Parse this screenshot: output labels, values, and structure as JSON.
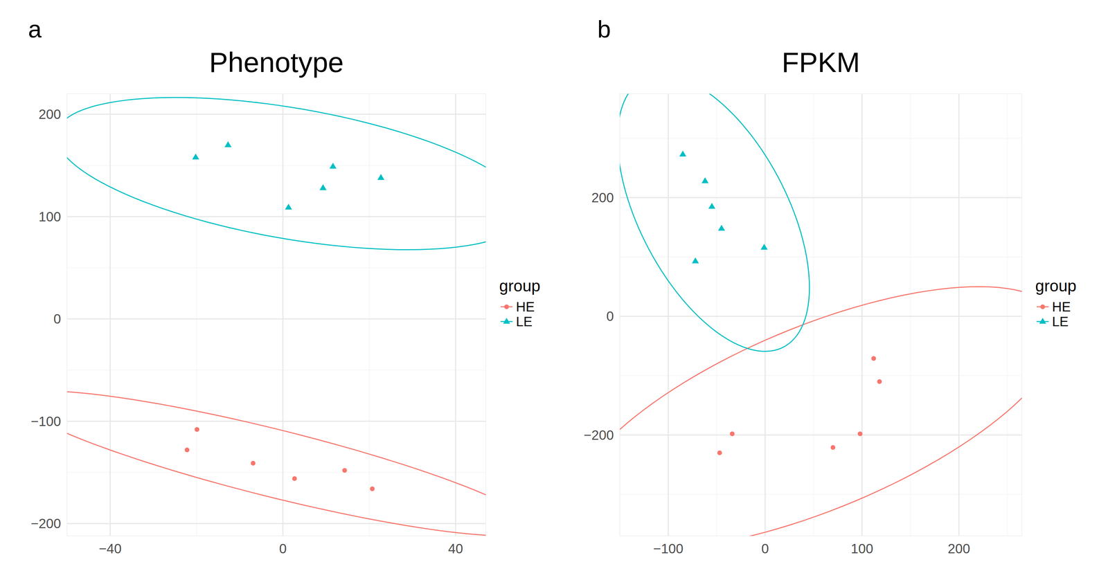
{
  "chart_data": [
    {
      "type": "scatter",
      "title": "Phenotype",
      "annotations": [
        "a"
      ],
      "legend_title": "group",
      "legend": "right",
      "grid": true,
      "xlim": [
        -50,
        47
      ],
      "xticks": [
        -40,
        0,
        40
      ],
      "ylim": [
        -212,
        220
      ],
      "yticks": [
        -200,
        -100,
        0,
        100,
        200
      ],
      "series": [
        {
          "name": "HE",
          "color": "#F8766D",
          "marker": "circle",
          "x": [
            -19.9,
            -22.2,
            -6.9,
            2.7,
            14.3,
            20.7
          ],
          "values": [
            -108,
            -128,
            -141,
            -156,
            -148,
            -166
          ]
        },
        {
          "name": "LE",
          "color": "#00BFC4",
          "marker": "triangle",
          "x": [
            -20.2,
            -12.7,
            1.3,
            9.3,
            11.6,
            22.7
          ],
          "values": [
            158,
            170,
            109,
            128,
            149,
            138
          ]
        }
      ]
    },
    {
      "type": "scatter",
      "title": "FPKM",
      "annotations": [
        "b"
      ],
      "legend_title": "group",
      "legend": "right",
      "grid": true,
      "xlim": [
        -150,
        265
      ],
      "xticks": [
        -100,
        0,
        100,
        200
      ],
      "ylim": [
        -370,
        375
      ],
      "yticks": [
        -200,
        0,
        200
      ],
      "series": [
        {
          "name": "HE",
          "color": "#F8766D",
          "marker": "circle",
          "x": [
            112,
            118,
            -34,
            -47,
            70,
            98
          ],
          "values": [
            -71,
            -110,
            -198,
            -230,
            -221,
            -198
          ]
        },
        {
          "name": "LE",
          "color": "#00BFC4",
          "marker": "triangle",
          "x": [
            -85,
            -62,
            -55,
            -45,
            -1,
            -72
          ],
          "values": [
            273,
            228,
            185,
            148,
            116,
            93
          ]
        }
      ]
    }
  ]
}
